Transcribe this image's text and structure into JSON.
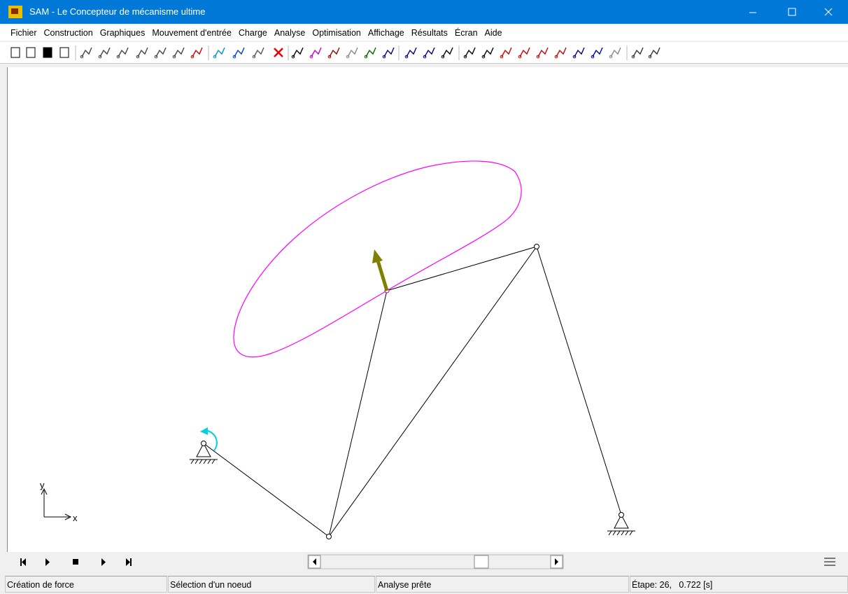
{
  "window": {
    "title": "SAM - Le Concepteur de mécanisme ultime"
  },
  "menu": [
    "Fichier",
    "Construction",
    "Graphiques",
    "Mouvement d'entrée",
    "Charge",
    "Analyse",
    "Optimisation",
    "Affichage",
    "Résultats",
    "Écran",
    "Aide"
  ],
  "canvas": {
    "axis_x": "x",
    "axis_y": "y"
  },
  "status": [
    "Création de force",
    "Sélection d'un noeud",
    "Analyse prête",
    "Étape: 26,   0.722 [s]"
  ]
}
